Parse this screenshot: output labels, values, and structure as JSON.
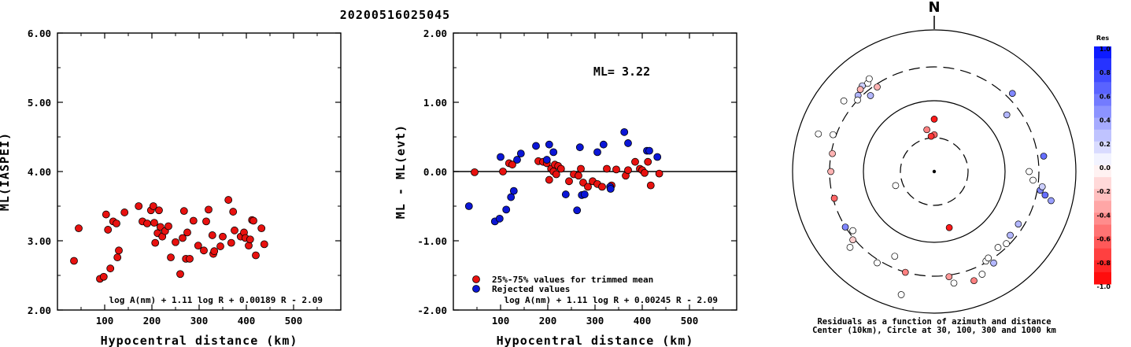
{
  "title": "20200516025045",
  "chart_data": [
    {
      "type": "scatter",
      "panel": "ml",
      "xlabel": "Hypocentral distance (km)",
      "ylabel": "ML(IASPEI)",
      "xlim": [
        0,
        600
      ],
      "ylim": [
        2.0,
        6.0
      ],
      "xticks": [
        "100",
        "200",
        "300",
        "400",
        "500"
      ],
      "yticks": [
        "2.00",
        "3.00",
        "4.00",
        "5.00",
        "6.00"
      ],
      "equation": "log A(nm) + 1.11 log R + 0.00189 R - 2.09",
      "marker_color": "#e8110f",
      "points": [
        [
          35,
          2.71
        ],
        [
          45,
          3.18
        ],
        [
          90,
          2.45
        ],
        [
          98,
          2.48
        ],
        [
          103,
          3.38
        ],
        [
          107,
          3.16
        ],
        [
          112,
          2.6
        ],
        [
          118,
          3.28
        ],
        [
          125,
          3.25
        ],
        [
          127,
          2.76
        ],
        [
          130,
          2.86
        ],
        [
          142,
          3.41
        ],
        [
          172,
          3.5
        ],
        [
          180,
          3.28
        ],
        [
          190,
          3.25
        ],
        [
          198,
          3.44
        ],
        [
          203,
          3.5
        ],
        [
          205,
          3.26
        ],
        [
          207,
          2.97
        ],
        [
          212,
          3.11
        ],
        [
          215,
          3.44
        ],
        [
          218,
          3.2
        ],
        [
          222,
          3.06
        ],
        [
          228,
          3.14
        ],
        [
          235,
          3.21
        ],
        [
          240,
          2.76
        ],
        [
          250,
          2.98
        ],
        [
          260,
          2.52
        ],
        [
          265,
          3.04
        ],
        [
          268,
          3.43
        ],
        [
          272,
          2.74
        ],
        [
          275,
          3.12
        ],
        [
          280,
          2.74
        ],
        [
          288,
          3.29
        ],
        [
          298,
          2.93
        ],
        [
          310,
          2.86
        ],
        [
          315,
          3.28
        ],
        [
          320,
          3.45
        ],
        [
          328,
          3.08
        ],
        [
          330,
          2.81
        ],
        [
          332,
          2.85
        ],
        [
          345,
          2.92
        ],
        [
          350,
          3.06
        ],
        [
          362,
          3.59
        ],
        [
          368,
          2.97
        ],
        [
          372,
          3.42
        ],
        [
          375,
          3.15
        ],
        [
          388,
          3.06
        ],
        [
          395,
          3.12
        ],
        [
          398,
          3.04
        ],
        [
          405,
          2.93
        ],
        [
          408,
          3.02
        ],
        [
          412,
          3.3
        ],
        [
          415,
          3.29
        ],
        [
          420,
          2.79
        ],
        [
          432,
          3.18
        ],
        [
          438,
          2.95
        ]
      ]
    },
    {
      "type": "scatter",
      "panel": "residual",
      "xlabel": "Hypocentral distance (km)",
      "ylabel": "ML - ML(evt)",
      "xlim": [
        0,
        600
      ],
      "ylim": [
        -2.0,
        2.0
      ],
      "xticks": [
        "100",
        "200",
        "300",
        "400",
        "500"
      ],
      "yticks": [
        "-2.00",
        "-1.00",
        "0.00",
        "1.00",
        "2.00"
      ],
      "ml_label": "ML= 3.22",
      "equation": "log A(nm) + 1.11 log R + 0.00245 R - 2.09",
      "legend": [
        "25%-75% values for trimmed mean",
        "Rejected values"
      ],
      "legend_placement": "bottom-left",
      "series": [
        {
          "name": "25%-75% values for trimmed mean",
          "color": "#e8110f",
          "points": [
            [
              45,
              -0.01
            ],
            [
              105,
              0.0
            ],
            [
              118,
              0.12
            ],
            [
              125,
              0.1
            ],
            [
              180,
              0.15
            ],
            [
              190,
              0.14
            ],
            [
              198,
              0.12
            ],
            [
              203,
              -0.12
            ],
            [
              207,
              0.04
            ],
            [
              212,
              0.0
            ],
            [
              215,
              0.1
            ],
            [
              218,
              -0.04
            ],
            [
              222,
              0.08
            ],
            [
              228,
              0.04
            ],
            [
              245,
              -0.14
            ],
            [
              255,
              -0.04
            ],
            [
              265,
              -0.06
            ],
            [
              270,
              0.04
            ],
            [
              275,
              -0.16
            ],
            [
              285,
              -0.22
            ],
            [
              295,
              -0.14
            ],
            [
              305,
              -0.18
            ],
            [
              315,
              -0.22
            ],
            [
              325,
              0.04
            ],
            [
              335,
              -0.2
            ],
            [
              345,
              0.03
            ],
            [
              365,
              -0.06
            ],
            [
              370,
              0.02
            ],
            [
              385,
              0.14
            ],
            [
              395,
              0.04
            ],
            [
              400,
              0.02
            ],
            [
              405,
              -0.02
            ],
            [
              412,
              0.14
            ],
            [
              418,
              -0.2
            ],
            [
              436,
              -0.03
            ]
          ]
        },
        {
          "name": "Rejected values",
          "color": "#0b16d6",
          "points": [
            [
              33,
              -0.5
            ],
            [
              88,
              -0.72
            ],
            [
              98,
              -0.68
            ],
            [
              100,
              0.21
            ],
            [
              112,
              -0.55
            ],
            [
              122,
              -0.37
            ],
            [
              128,
              -0.28
            ],
            [
              135,
              0.17
            ],
            [
              143,
              0.26
            ],
            [
              175,
              0.37
            ],
            [
              198,
              0.17
            ],
            [
              203,
              0.39
            ],
            [
              212,
              0.28
            ],
            [
              238,
              -0.33
            ],
            [
              262,
              -0.56
            ],
            [
              268,
              0.35
            ],
            [
              272,
              -0.34
            ],
            [
              278,
              -0.33
            ],
            [
              305,
              0.28
            ],
            [
              318,
              0.39
            ],
            [
              332,
              -0.22
            ],
            [
              333,
              -0.25
            ],
            [
              362,
              0.57
            ],
            [
              370,
              0.41
            ],
            [
              410,
              0.3
            ],
            [
              415,
              0.3
            ],
            [
              432,
              0.21
            ]
          ]
        }
      ]
    },
    {
      "type": "scatter",
      "panel": "azimuth",
      "north_label": "N",
      "caption_line1": "Residuals as a function of azimuth and distance",
      "caption_line2": "Center (10km), Circle at 30, 100, 300 and 1000 km",
      "colorbar_title": "Res",
      "colorbar_ticks": [
        "1.0",
        "0.8",
        "0.6",
        "0.4",
        "0.2",
        "0.0",
        "-0.2",
        "-0.4",
        "-0.6",
        "-0.8",
        "-1.0"
      ],
      "points_az_r_res": [
        [
          0,
          0.26,
          -0.6
        ],
        [
          0,
          0.37,
          -0.9
        ],
        [
          350,
          0.3,
          -0.5
        ],
        [
          355,
          0.25,
          -0.8
        ],
        [
          250,
          0.29,
          0.0
        ],
        [
          165,
          0.41,
          -0.9
        ],
        [
          320,
          0.7,
          0.3
        ],
        [
          326,
          0.72,
          -0.3
        ],
        [
          323,
          0.78,
          0.0
        ],
        [
          325,
          0.8,
          0.0
        ],
        [
          320,
          0.79,
          0.2
        ],
        [
          318,
          0.78,
          -0.3
        ],
        [
          315,
          0.76,
          0.3
        ],
        [
          313,
          0.74,
          0.0
        ],
        [
          308,
          0.81,
          0.0
        ],
        [
          290,
          0.76,
          0.0
        ],
        [
          288,
          0.86,
          0.0
        ],
        [
          280,
          0.73,
          -0.3
        ],
        [
          270,
          0.73,
          -0.3
        ],
        [
          255,
          0.73,
          -0.6
        ],
        [
          238,
          0.74,
          0.5
        ],
        [
          234,
          0.71,
          0.0
        ],
        [
          230,
          0.75,
          -0.2
        ],
        [
          228,
          0.8,
          0.0
        ],
        [
          212,
          0.76,
          0.0
        ],
        [
          205,
          0.66,
          0.0
        ],
        [
          196,
          0.74,
          -0.5
        ],
        [
          195,
          0.9,
          0.0
        ],
        [
          172,
          0.75,
          -0.4
        ],
        [
          170,
          0.8,
          0.0
        ],
        [
          160,
          0.82,
          -0.5
        ],
        [
          155,
          0.8,
          0.0
        ],
        [
          150,
          0.73,
          0.0
        ],
        [
          148,
          0.72,
          0.0
        ],
        [
          140,
          0.7,
          0.0
        ],
        [
          147,
          0.77,
          0.3
        ],
        [
          135,
          0.72,
          0.0
        ],
        [
          130,
          0.7,
          0.3
        ],
        [
          122,
          0.7,
          0.3
        ],
        [
          95,
          0.7,
          0.0
        ],
        [
          100,
          0.76,
          0.5
        ],
        [
          102,
          0.8,
          0.6
        ],
        [
          104,
          0.85,
          0.4
        ],
        [
          98,
          0.77,
          0.2
        ],
        [
          90,
          0.67,
          0.0
        ],
        [
          52,
          0.65,
          0.3
        ],
        [
          45,
          0.78,
          0.5
        ],
        [
          82,
          0.78,
          0.6
        ]
      ]
    }
  ]
}
